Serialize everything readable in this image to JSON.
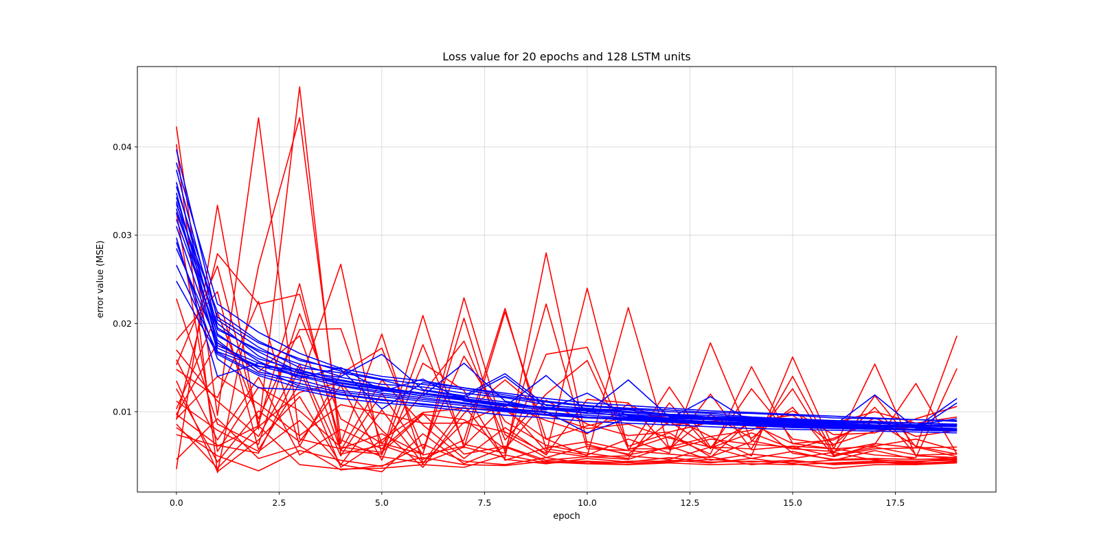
{
  "chart_data": {
    "type": "line",
    "title": "Loss value for 20 epochs and 128 LSTM units",
    "xlabel": "epoch",
    "ylabel": "error value (MSE)",
    "xlim": [
      -0.95,
      19.95
    ],
    "ylim": [
      0.0009,
      0.0491
    ],
    "xticks": [
      0.0,
      2.5,
      5.0,
      7.5,
      10.0,
      12.5,
      15.0,
      17.5
    ],
    "xtick_labels": [
      "0.0",
      "2.5",
      "5.0",
      "7.5",
      "10.0",
      "12.5",
      "15.0",
      "17.5"
    ],
    "yticks": [
      0.01,
      0.02,
      0.03,
      0.04
    ],
    "ytick_labels": [
      "0.01",
      "0.02",
      "0.03",
      "0.04"
    ],
    "grid": true,
    "legend": "none",
    "x": [
      0,
      1,
      2,
      3,
      4,
      5,
      6,
      7,
      8,
      9,
      10,
      11,
      12,
      13,
      14,
      15,
      16,
      17,
      18,
      19
    ],
    "colors": {
      "red_group": "#ff0000",
      "blue_group": "#0000ff"
    },
    "series": [
      {
        "color": "red",
        "values": [
          0.0423,
          0.0096,
          0.0433,
          0.0069,
          0.0058,
          0.0075,
          0.0052,
          0.0229,
          0.0074,
          0.0048,
          0.0061,
          0.0052,
          0.0089,
          0.0059,
          0.0076,
          0.0058,
          0.007,
          0.0089,
          0.0061,
          0.0052
        ]
      },
      {
        "color": "red",
        "values": [
          0.0035,
          0.0334,
          0.008,
          0.0468,
          0.0052,
          0.0062,
          0.0046,
          0.0068,
          0.0217,
          0.0058,
          0.0051,
          0.0069,
          0.0053,
          0.0178,
          0.0067,
          0.0058,
          0.0055,
          0.0064,
          0.0059,
          0.0186
        ]
      },
      {
        "color": "red",
        "values": [
          0.0403,
          0.0031,
          0.0265,
          0.0433,
          0.0068,
          0.0049,
          0.0042,
          0.006,
          0.0048,
          0.028,
          0.0063,
          0.0051,
          0.006,
          0.0072,
          0.005,
          0.0162,
          0.0058,
          0.0051,
          0.0048,
          0.0149
        ]
      },
      {
        "color": "red",
        "values": [
          0.0091,
          0.0279,
          0.0222,
          0.0233,
          0.0064,
          0.0188,
          0.0042,
          0.0088,
          0.0077,
          0.0053,
          0.024,
          0.0057,
          0.0072,
          0.0052,
          0.0151,
          0.0064,
          0.0058,
          0.0154,
          0.005,
          0.0048
        ]
      },
      {
        "color": "red",
        "values": [
          0.0153,
          0.0265,
          0.0086,
          0.0245,
          0.0056,
          0.0052,
          0.0209,
          0.0059,
          0.0213,
          0.0069,
          0.005,
          0.0218,
          0.0057,
          0.0069,
          0.0063,
          0.006,
          0.0049,
          0.0063,
          0.0132,
          0.0052
        ]
      },
      {
        "color": "red",
        "values": [
          0.0228,
          0.0086,
          0.0063,
          0.0211,
          0.0092,
          0.0064,
          0.0052,
          0.0206,
          0.0054,
          0.0222,
          0.0058,
          0.0056,
          0.0128,
          0.006,
          0.0058,
          0.014,
          0.0053,
          0.0118,
          0.006,
          0.0049
        ]
      },
      {
        "color": "red",
        "values": [
          0.0181,
          0.0236,
          0.0057,
          0.0132,
          0.0267,
          0.0051,
          0.0176,
          0.0063,
          0.0053,
          0.0165,
          0.0173,
          0.0061,
          0.0076,
          0.0049,
          0.0066,
          0.0126,
          0.0051,
          0.006,
          0.0051,
          0.0046
        ]
      },
      {
        "color": "red",
        "values": [
          0.0103,
          0.0212,
          0.0092,
          0.0193,
          0.0194,
          0.0064,
          0.0121,
          0.018,
          0.0068,
          0.012,
          0.0158,
          0.0058,
          0.0058,
          0.0097,
          0.007,
          0.0105,
          0.005,
          0.0058,
          0.0059,
          0.006
        ]
      },
      {
        "color": "red",
        "values": [
          0.0148,
          0.0116,
          0.0225,
          0.0061,
          0.0143,
          0.0172,
          0.0058,
          0.0163,
          0.0089,
          0.0062,
          0.0053,
          0.0047,
          0.011,
          0.0058,
          0.0126,
          0.0069,
          0.0062,
          0.0105,
          0.0051,
          0.0052
        ]
      },
      {
        "color": "red",
        "values": [
          0.0097,
          0.0178,
          0.0145,
          0.0186,
          0.0056,
          0.0136,
          0.0085,
          0.0047,
          0.0082,
          0.0051,
          0.0114,
          0.011,
          0.0058,
          0.012,
          0.0057,
          0.0061,
          0.0058,
          0.0061,
          0.0069,
          0.0056
        ]
      },
      {
        "color": "red",
        "values": [
          0.0126,
          0.0043,
          0.0101,
          0.0066,
          0.013,
          0.0045,
          0.0155,
          0.0124,
          0.0045,
          0.0059,
          0.0066,
          0.0056,
          0.0052,
          0.0048,
          0.0091,
          0.0053,
          0.0046,
          0.0047,
          0.0046,
          0.0047
        ]
      },
      {
        "color": "red",
        "values": [
          0.017,
          0.0112,
          0.0072,
          0.0154,
          0.005,
          0.0121,
          0.0051,
          0.0061,
          0.0107,
          0.0055,
          0.0049,
          0.005,
          0.0046,
          0.006,
          0.0047,
          0.0055,
          0.0045,
          0.0056,
          0.0046,
          0.0046
        ]
      },
      {
        "color": "red",
        "values": [
          0.0159,
          0.0068,
          0.0139,
          0.0051,
          0.008,
          0.0058,
          0.0098,
          0.0052,
          0.0061,
          0.0045,
          0.0049,
          0.0046,
          0.0061,
          0.0045,
          0.0052,
          0.0047,
          0.0054,
          0.0045,
          0.0044,
          0.0045
        ]
      },
      {
        "color": "red",
        "values": [
          0.0112,
          0.0079,
          0.0055,
          0.009,
          0.004,
          0.0102,
          0.0041,
          0.0107,
          0.0046,
          0.0041,
          0.0047,
          0.0043,
          0.0048,
          0.0043,
          0.0044,
          0.0042,
          0.0045,
          0.0046,
          0.0042,
          0.0043
        ]
      },
      {
        "color": "red",
        "values": [
          0.0082,
          0.005,
          0.0033,
          0.0056,
          0.0045,
          0.0038,
          0.0063,
          0.0044,
          0.004,
          0.0048,
          0.0041,
          0.004,
          0.0045,
          0.0042,
          0.0047,
          0.0041,
          0.0036,
          0.004,
          0.004,
          0.0042
        ]
      },
      {
        "color": "red",
        "values": [
          0.0074,
          0.0061,
          0.0084,
          0.004,
          0.0035,
          0.0036,
          0.004,
          0.0037,
          0.0051,
          0.0042,
          0.0043,
          0.004,
          0.0042,
          0.004,
          0.0041,
          0.004,
          0.0042,
          0.0044,
          0.0041,
          0.0044
        ]
      },
      {
        "color": "red",
        "values": [
          0.0046,
          0.0092,
          0.0047,
          0.0061,
          0.0034,
          0.0039,
          0.0048,
          0.004,
          0.0039,
          0.0044,
          0.0044,
          0.0042,
          0.0043,
          0.0046,
          0.0043,
          0.0045,
          0.004,
          0.0042,
          0.0043,
          0.0047
        ]
      },
      {
        "color": "red",
        "values": [
          0.0135,
          0.0032,
          0.0068,
          0.0117,
          0.004,
          0.0032,
          0.0075,
          0.0041,
          0.006,
          0.0043,
          0.0041,
          0.0044,
          0.0044,
          0.0049,
          0.004,
          0.0044,
          0.0041,
          0.0043,
          0.004,
          0.0044
        ]
      },
      {
        "color": "red",
        "values": [
          0.0092,
          0.014,
          0.0109,
          0.0073,
          0.0108,
          0.0098,
          0.0087,
          0.0087,
          0.0109,
          0.009,
          0.0075,
          0.0109,
          0.0085,
          0.0089,
          0.0094,
          0.009,
          0.0087,
          0.01,
          0.0087,
          0.0094
        ]
      },
      {
        "color": "red",
        "values": [
          0.0097,
          0.0062,
          0.0053,
          0.0149,
          0.0037,
          0.0068,
          0.0099,
          0.0104,
          0.0102,
          0.0069,
          0.0084,
          0.0094,
          0.0095,
          0.0072,
          0.0079,
          0.0101,
          0.0074,
          0.0076,
          0.0092,
          0.0106
        ]
      },
      {
        "color": "red",
        "values": [
          0.0086,
          0.0036,
          0.0083,
          0.0122,
          0.0133,
          0.0079,
          0.0037,
          0.0098,
          0.0136,
          0.0097,
          0.0081,
          0.0086,
          0.007,
          0.006,
          0.0089,
          0.0096,
          0.0063,
          0.0078,
          0.0083,
          0.0085
        ]
      },
      {
        "color": "red",
        "values": [
          0.0326,
          0.0055,
          0.0128,
          0.0101,
          0.006,
          0.0054,
          0.0097,
          0.0091,
          0.0058,
          0.0113,
          0.0086,
          0.0073,
          0.0077,
          0.0088,
          0.0086,
          0.0064,
          0.0068,
          0.0093,
          0.0072,
          0.0079
        ]
      },
      {
        "color": "blue",
        "values": [
          0.0397,
          0.0204,
          0.0173,
          0.015,
          0.0144,
          0.0136,
          0.0124,
          0.0117,
          0.0111,
          0.0103,
          0.0103,
          0.0102,
          0.0097,
          0.0094,
          0.0093,
          0.009,
          0.0089,
          0.0088,
          0.0087,
          0.0086
        ]
      },
      {
        "color": "blue",
        "values": [
          0.0382,
          0.0222,
          0.019,
          0.0166,
          0.0149,
          0.014,
          0.0135,
          0.0127,
          0.0119,
          0.0112,
          0.0107,
          0.0104,
          0.0102,
          0.0099,
          0.0098,
          0.0096,
          0.0093,
          0.0092,
          0.0091,
          0.0089
        ]
      },
      {
        "color": "blue",
        "values": [
          0.0374,
          0.0195,
          0.0168,
          0.0145,
          0.0139,
          0.0131,
          0.0128,
          0.0121,
          0.0116,
          0.0108,
          0.0103,
          0.01,
          0.0096,
          0.0094,
          0.0091,
          0.0089,
          0.0088,
          0.0087,
          0.0085,
          0.0085
        ]
      },
      {
        "color": "blue",
        "values": [
          0.036,
          0.0186,
          0.016,
          0.0147,
          0.0136,
          0.0128,
          0.012,
          0.0114,
          0.0108,
          0.0104,
          0.0101,
          0.0097,
          0.0095,
          0.0093,
          0.009,
          0.0088,
          0.0087,
          0.0085,
          0.0084,
          0.0083
        ]
      },
      {
        "color": "blue",
        "values": [
          0.0355,
          0.0207,
          0.0178,
          0.016,
          0.0146,
          0.0137,
          0.0131,
          0.0125,
          0.0117,
          0.0111,
          0.0106,
          0.0103,
          0.01,
          0.0098,
          0.0094,
          0.0092,
          0.009,
          0.0089,
          0.0087,
          0.0086
        ]
      },
      {
        "color": "blue",
        "values": [
          0.0348,
          0.0175,
          0.0155,
          0.0141,
          0.0132,
          0.0125,
          0.0118,
          0.0155,
          0.0112,
          0.0103,
          0.0098,
          0.0096,
          0.0093,
          0.0091,
          0.009,
          0.0087,
          0.0086,
          0.0084,
          0.0083,
          0.0081
        ]
      },
      {
        "color": "blue",
        "values": [
          0.0343,
          0.0193,
          0.017,
          0.0154,
          0.014,
          0.0165,
          0.0125,
          0.0118,
          0.0143,
          0.0107,
          0.0104,
          0.01,
          0.0097,
          0.0096,
          0.0093,
          0.0091,
          0.0089,
          0.0087,
          0.0085,
          0.0084
        ]
      },
      {
        "color": "blue",
        "values": [
          0.0338,
          0.0168,
          0.0151,
          0.0148,
          0.013,
          0.0123,
          0.0137,
          0.0112,
          0.0106,
          0.0141,
          0.01,
          0.0094,
          0.0092,
          0.0091,
          0.0088,
          0.0086,
          0.0084,
          0.0083,
          0.0082,
          0.0081
        ]
      },
      {
        "color": "blue",
        "values": [
          0.0335,
          0.0213,
          0.018,
          0.0158,
          0.0148,
          0.0103,
          0.0133,
          0.0127,
          0.0121,
          0.0115,
          0.011,
          0.0107,
          0.0104,
          0.0101,
          0.0099,
          0.0097,
          0.0095,
          0.0093,
          0.0091,
          0.009
        ]
      },
      {
        "color": "blue",
        "values": [
          0.033,
          0.0181,
          0.0145,
          0.0136,
          0.0124,
          0.0119,
          0.0114,
          0.0109,
          0.0103,
          0.0099,
          0.0094,
          0.009,
          0.0088,
          0.0086,
          0.0084,
          0.0082,
          0.0081,
          0.008,
          0.0079,
          0.0078
        ]
      },
      {
        "color": "blue",
        "values": [
          0.0325,
          0.02,
          0.0163,
          0.0143,
          0.0135,
          0.0127,
          0.0121,
          0.0116,
          0.014,
          0.0104,
          0.0099,
          0.0136,
          0.0094,
          0.0092,
          0.0089,
          0.0087,
          0.0085,
          0.0084,
          0.0082,
          0.0115
        ]
      },
      {
        "color": "blue",
        "values": [
          0.0318,
          0.0188,
          0.0157,
          0.0138,
          0.015,
          0.0124,
          0.0118,
          0.0113,
          0.0107,
          0.0102,
          0.0121,
          0.0095,
          0.0092,
          0.0117,
          0.0088,
          0.0086,
          0.0084,
          0.0119,
          0.0081,
          0.008
        ]
      },
      {
        "color": "blue",
        "values": [
          0.031,
          0.0172,
          0.0152,
          0.014,
          0.0129,
          0.0121,
          0.0116,
          0.011,
          0.0104,
          0.01,
          0.0076,
          0.0093,
          0.009,
          0.0088,
          0.0086,
          0.0084,
          0.0082,
          0.0081,
          0.0079,
          0.011
        ]
      },
      {
        "color": "blue",
        "values": [
          0.0297,
          0.014,
          0.0155,
          0.0144,
          0.0133,
          0.0126,
          0.012,
          0.0115,
          0.0109,
          0.0105,
          0.0102,
          0.0099,
          0.0096,
          0.0094,
          0.0092,
          0.009,
          0.0088,
          0.0087,
          0.0085,
          0.0092
        ]
      },
      {
        "color": "blue",
        "values": [
          0.0292,
          0.016,
          0.0127,
          0.0125,
          0.0115,
          0.011,
          0.0106,
          0.0101,
          0.0096,
          0.0093,
          0.0089,
          0.0087,
          0.0085,
          0.0083,
          0.0081,
          0.008,
          0.0079,
          0.0078,
          0.0077,
          0.0076
        ]
      },
      {
        "color": "blue",
        "values": [
          0.0285,
          0.0178,
          0.0149,
          0.0129,
          0.012,
          0.0114,
          0.0108,
          0.0104,
          0.01,
          0.0096,
          0.0093,
          0.0091,
          0.0088,
          0.0086,
          0.0084,
          0.0083,
          0.0081,
          0.008,
          0.0079,
          0.0078
        ]
      },
      {
        "color": "blue",
        "values": [
          0.0266,
          0.0167,
          0.0143,
          0.0132,
          0.0122,
          0.0117,
          0.0112,
          0.0107,
          0.0102,
          0.0099,
          0.0096,
          0.0093,
          0.0091,
          0.0089,
          0.0087,
          0.0085,
          0.0083,
          0.0082,
          0.008,
          0.0079
        ]
      },
      {
        "color": "blue",
        "values": [
          0.0248,
          0.0165,
          0.0141,
          0.0127,
          0.0119,
          0.0113,
          0.0109,
          0.0104,
          0.0101,
          0.0097,
          0.0094,
          0.0092,
          0.0089,
          0.0087,
          0.0085,
          0.0083,
          0.0082,
          0.0081,
          0.008,
          0.0079
        ]
      }
    ]
  }
}
